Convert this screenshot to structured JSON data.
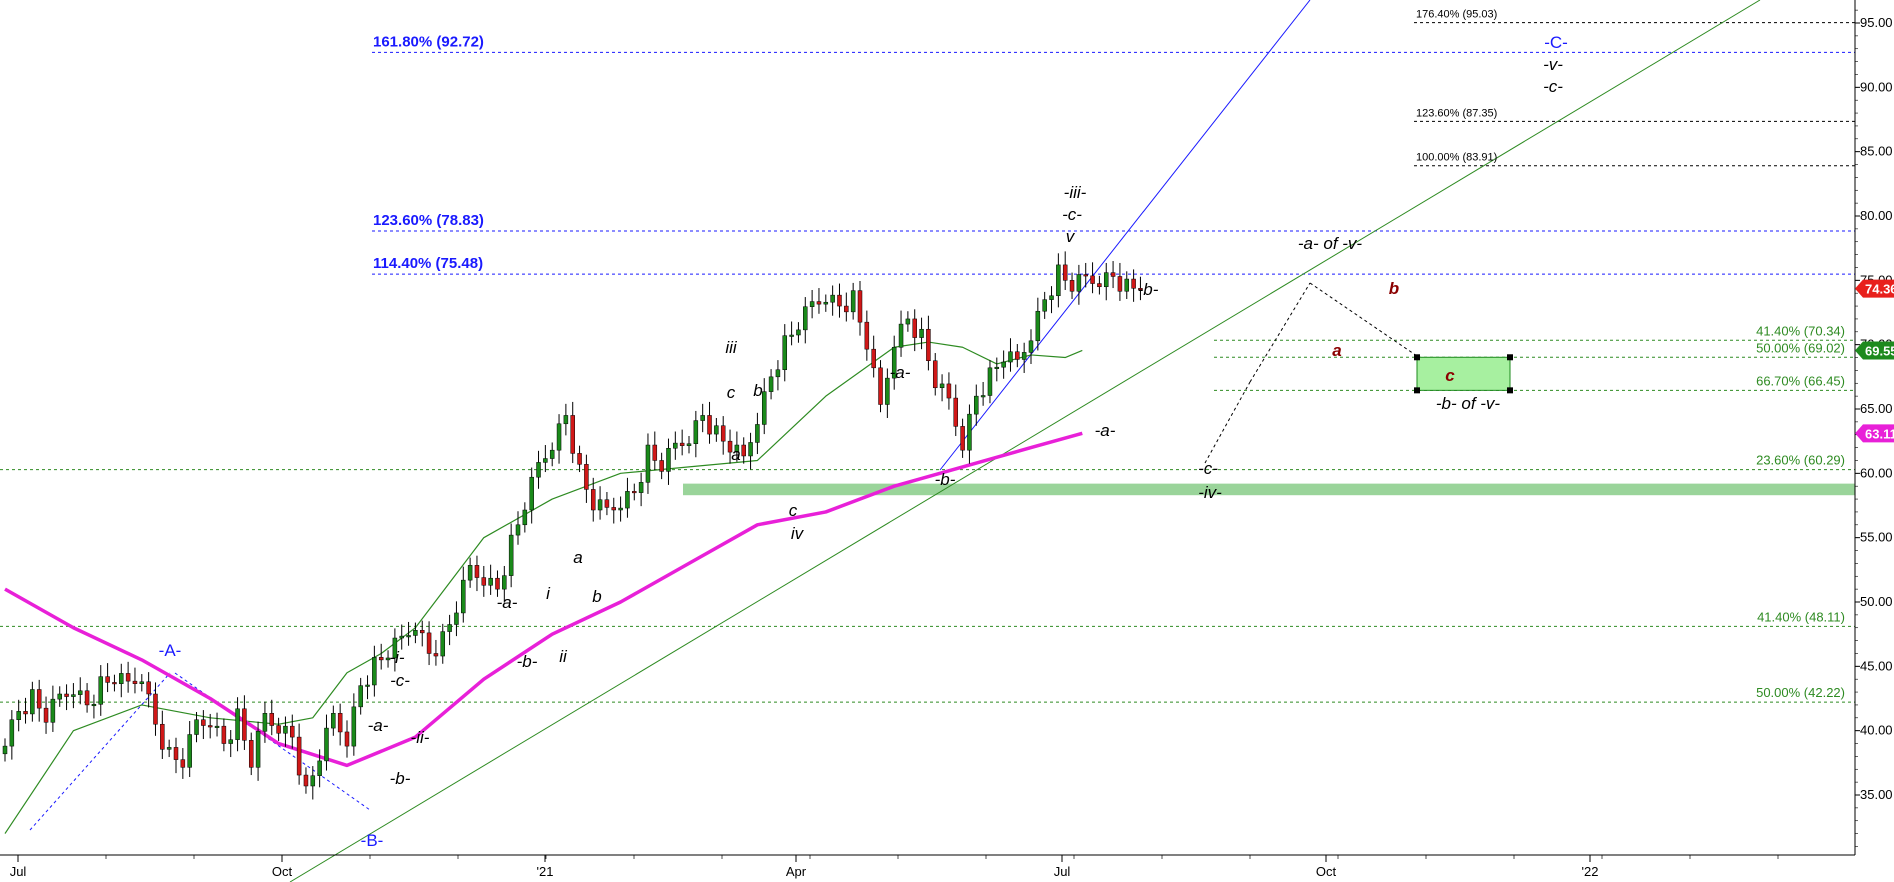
{
  "chart_data": {
    "type": "candlestick",
    "title": "",
    "xlabel": "",
    "ylabel": "",
    "ylim": [
      30.8,
      97
    ],
    "grid": false,
    "x_ticks": [
      "Jul",
      "Oct",
      "'21",
      "Apr",
      "Jul",
      "Oct",
      "'22"
    ],
    "y_ticks": [
      "35.00",
      "40.00",
      "45.00",
      "50.00",
      "55.00",
      "60.00",
      "65.00",
      "70.00",
      "75.00",
      "80.00",
      "85.00",
      "90.00",
      "95.00"
    ],
    "price_tags": [
      {
        "label": "74.36",
        "value": 74.36,
        "color": "#e8201c"
      },
      {
        "label": "69.55",
        "value": 69.55,
        "color": "#1e8a1e"
      },
      {
        "label": "63.11",
        "value": 63.11,
        "color": "#e820d8"
      }
    ],
    "series": [
      {
        "name": "",
        "description_key": "price",
        "style": "candles",
        "x": [
          0,
          4,
          8,
          12,
          16,
          20,
          24,
          28,
          32,
          36,
          40,
          44,
          48,
          52,
          56,
          60,
          64,
          68,
          72,
          76,
          80,
          84,
          88,
          92,
          96,
          100,
          104,
          108,
          112,
          116,
          120,
          124,
          128,
          132,
          136,
          140,
          144,
          148,
          152,
          156,
          160,
          164,
          168,
          172,
          176,
          180,
          184,
          188,
          192,
          196,
          200,
          204,
          208,
          212,
          216,
          220,
          224,
          228,
          232,
          236,
          240,
          244,
          248,
          252,
          256,
          260,
          264,
          268,
          272,
          276,
          280,
          284,
          288,
          292,
          296,
          300,
          304,
          308,
          312,
          316,
          320,
          324,
          328,
          332
        ],
        "close": [
          39.5,
          41.5,
          42.5,
          41.0,
          42.5,
          43.5,
          42.0,
          43.5,
          44.0,
          43.5,
          44.5,
          40.5,
          38.0,
          37.5,
          40.5,
          41.0,
          39.0,
          41.0,
          37.5,
          41.0,
          40.5,
          39.5,
          35.0,
          38.0,
          41.0,
          39.5,
          43.5,
          45.0,
          46.0,
          47.0,
          48.5,
          46.0,
          47.0,
          49.5,
          52.5,
          52.0,
          51.0,
          54.5,
          57.5,
          60.5,
          62.5,
          64.5,
          60.0,
          57.5,
          57.0,
          58.0,
          58.5,
          61.5,
          60.5,
          62.0,
          63.0,
          64.5,
          63.0,
          62.0,
          61.0,
          64.5,
          67.5,
          70.0,
          71.5,
          73.0,
          74.0,
          73.0,
          73.5,
          70.0,
          65.0,
          70.5,
          72.0,
          70.5,
          67.0,
          65.5,
          62.5,
          66.0,
          67.5,
          69.0,
          68.5,
          71.0,
          73.5,
          75.5,
          74.5,
          75.0,
          75.2,
          75.3,
          74.4,
          74.36
        ]
      },
      {
        "name": "",
        "description_key": "ma_short",
        "style": "line",
        "color": "#2e8b22",
        "x": [
          0,
          20,
          40,
          60,
          80,
          90,
          100,
          110,
          120,
          140,
          160,
          180,
          200,
          220,
          240,
          260,
          270,
          280,
          290,
          300,
          310,
          315
        ],
        "y": [
          32,
          40,
          42,
          41,
          40.5,
          41,
          44.5,
          46,
          48,
          55,
          58,
          60,
          60.5,
          61,
          66,
          69.8,
          70.2,
          69.8,
          68.5,
          69.2,
          69.0,
          69.55
        ]
      },
      {
        "name": "",
        "description_key": "ma_long",
        "style": "line",
        "color": "#e820d8",
        "x": [
          0,
          20,
          40,
          60,
          80,
          100,
          120,
          140,
          160,
          180,
          200,
          220,
          240,
          260,
          280,
          300,
          315
        ],
        "y": [
          51,
          48,
          45.5,
          42.5,
          39,
          37.3,
          39.5,
          44,
          47.5,
          50,
          53,
          56,
          57,
          59,
          60.5,
          62,
          63.11
        ]
      }
    ],
    "fib_levels": [
      {
        "label": "161.80% (92.72)",
        "value": 92.72,
        "group": "blue"
      },
      {
        "label": "123.60% (78.83)",
        "value": 78.83,
        "group": "blue"
      },
      {
        "label": "114.40% (75.48)",
        "value": 75.48,
        "group": "blue"
      },
      {
        "label": "176.40% (95.03)",
        "value": 95.03,
        "group": "black"
      },
      {
        "label": "123.60% (87.35)",
        "value": 87.35,
        "group": "black"
      },
      {
        "label": "100.00% (83.91)",
        "value": 83.91,
        "group": "black"
      },
      {
        "label": "41.40% (70.34)",
        "value": 70.34,
        "group": "green"
      },
      {
        "label": "50.00% (69.02)",
        "value": 69.02,
        "group": "green"
      },
      {
        "label": "66.70% (66.45)",
        "value": 66.45,
        "group": "green"
      },
      {
        "label": "23.60% (60.29)",
        "value": 60.29,
        "group": "green"
      },
      {
        "label": "41.40% (48.11)",
        "value": 48.11,
        "group": "green"
      },
      {
        "label": "50.00% (42.22)",
        "value": 42.22,
        "group": "green"
      }
    ],
    "support_band": [
      58.3,
      59.2
    ],
    "target_box": {
      "from": 66.45,
      "to": 69.02,
      "label": "c"
    },
    "wave_labels": [
      {
        "text": "-A-",
        "color": "blue"
      },
      {
        "text": "-B-",
        "color": "blue"
      },
      {
        "text": "-C-",
        "color": "blue"
      },
      {
        "text": "-v-",
        "color": "black"
      },
      {
        "text": "-c-",
        "color": "black"
      },
      {
        "text": "-i-",
        "color": "black"
      },
      {
        "text": "-c-",
        "color": "black"
      },
      {
        "text": "-a-",
        "color": "black"
      },
      {
        "text": "-ii-",
        "color": "black"
      },
      {
        "text": "-b-",
        "color": "black"
      },
      {
        "text": "-a-",
        "color": "black"
      },
      {
        "text": "-b-",
        "color": "black"
      },
      {
        "text": "i",
        "color": "black"
      },
      {
        "text": "ii",
        "color": "black"
      },
      {
        "text": "a",
        "color": "black"
      },
      {
        "text": "b",
        "color": "black"
      },
      {
        "text": "iii",
        "color": "black"
      },
      {
        "text": "c",
        "color": "black"
      },
      {
        "text": "b",
        "color": "black"
      },
      {
        "text": "a",
        "color": "black"
      },
      {
        "text": "c",
        "color": "black"
      },
      {
        "text": "iv",
        "color": "black"
      },
      {
        "text": "-a-",
        "color": "black"
      },
      {
        "text": "-b-",
        "color": "black"
      },
      {
        "text": "-iii-",
        "color": "black"
      },
      {
        "text": "-c-",
        "color": "black"
      },
      {
        "text": "v",
        "color": "black"
      },
      {
        "text": "-b-",
        "color": "black"
      },
      {
        "text": "-a-",
        "color": "black"
      },
      {
        "text": "-c-",
        "color": "black"
      },
      {
        "text": "-iv-",
        "color": "black"
      },
      {
        "text": "-a- of -v-",
        "color": "black"
      },
      {
        "text": "b",
        "color": "red"
      },
      {
        "text": "a",
        "color": "red"
      },
      {
        "text": "c",
        "color": "red"
      },
      {
        "text": "-b- of -v-",
        "color": "black"
      }
    ]
  }
}
